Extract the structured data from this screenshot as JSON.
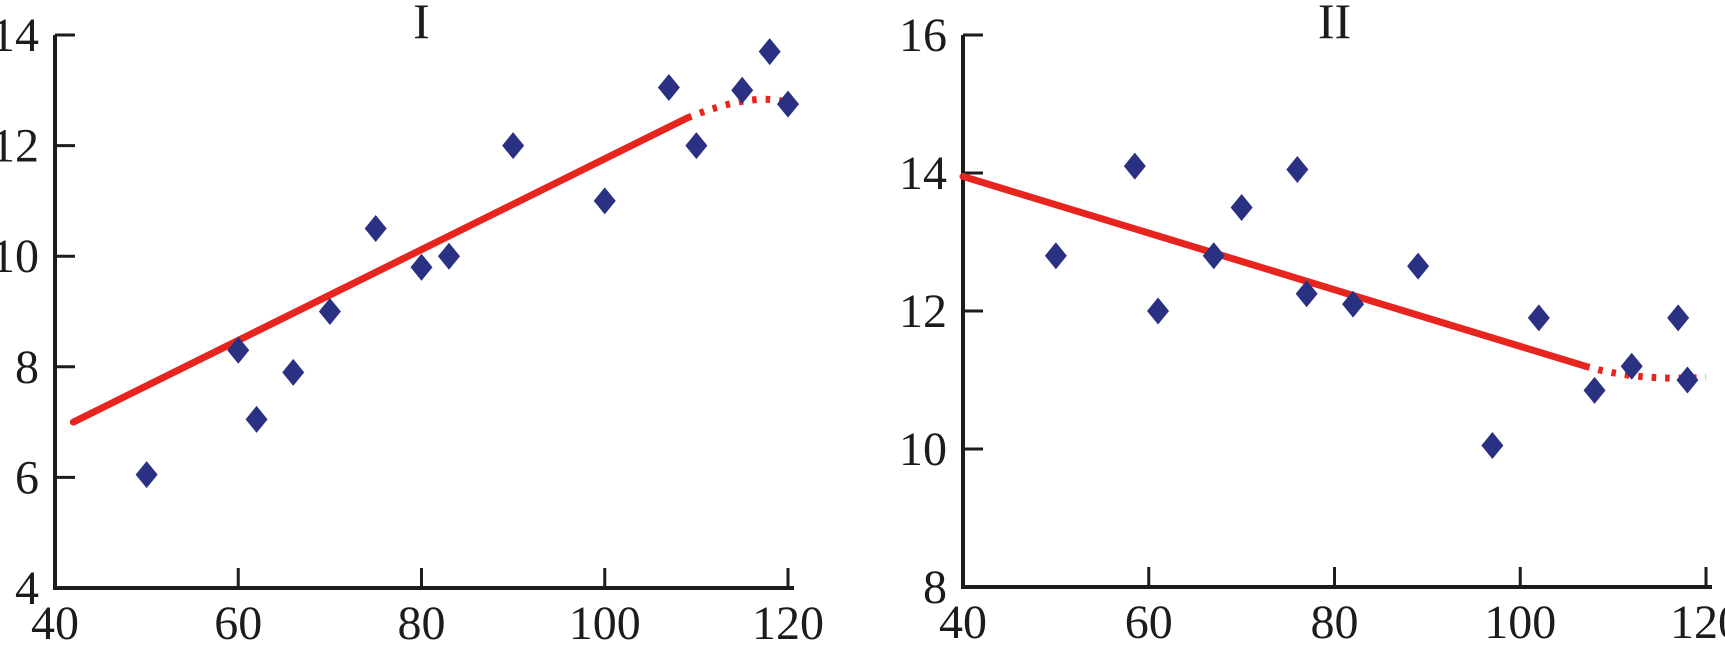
{
  "figure": {
    "background": "#ffffff",
    "axis_color": "#1c1c1c",
    "marker_color": "#2b3182",
    "trend_color": "#e8241f",
    "marker_shape": "diamond"
  },
  "chart_data": [
    {
      "type": "scatter",
      "title": "I",
      "xlim": [
        40,
        120
      ],
      "ylim": [
        4,
        14
      ],
      "x_ticks": [
        40,
        60,
        80,
        100,
        120
      ],
      "y_ticks": [
        4,
        6,
        8,
        10,
        12,
        14
      ],
      "xlabel": "",
      "ylabel": "",
      "grid": false,
      "legend": null,
      "points": [
        [
          50,
          6.05
        ],
        [
          60,
          8.3
        ],
        [
          62,
          7.05
        ],
        [
          66,
          7.9
        ],
        [
          70,
          9.0
        ],
        [
          75,
          10.5
        ],
        [
          80,
          9.8
        ],
        [
          83,
          10.0
        ],
        [
          90,
          12.0
        ],
        [
          100,
          11.0
        ],
        [
          107,
          13.05
        ],
        [
          110,
          12.0
        ],
        [
          115,
          13.0
        ],
        [
          118,
          13.7
        ],
        [
          120,
          12.75
        ]
      ],
      "trend_solid": [
        [
          42,
          7.0
        ],
        [
          109,
          12.5
        ]
      ],
      "trend_dotted": [
        [
          109,
          12.5
        ],
        [
          115,
          12.8
        ],
        [
          119.5,
          12.8
        ]
      ]
    },
    {
      "type": "scatter",
      "title": "II",
      "xlim": [
        40,
        120
      ],
      "ylim": [
        8,
        16
      ],
      "x_ticks": [
        40,
        60,
        80,
        100,
        120
      ],
      "y_ticks": [
        8,
        10,
        12,
        14,
        16
      ],
      "xlabel": "",
      "ylabel": "",
      "grid": false,
      "legend": null,
      "points": [
        [
          50,
          12.8
        ],
        [
          58.5,
          14.1
        ],
        [
          61,
          12.0
        ],
        [
          67,
          12.8
        ],
        [
          70,
          13.5
        ],
        [
          76,
          14.05
        ],
        [
          77,
          12.25
        ],
        [
          82,
          12.1
        ],
        [
          89,
          12.65
        ],
        [
          97,
          10.05
        ],
        [
          102,
          11.9
        ],
        [
          108,
          10.85
        ],
        [
          112,
          11.2
        ],
        [
          117,
          11.9
        ],
        [
          118,
          11.0
        ]
      ],
      "trend_solid": [
        [
          40,
          13.95
        ],
        [
          107,
          11.2
        ]
      ],
      "trend_dotted": [
        [
          107,
          11.2
        ],
        [
          113,
          11.05
        ],
        [
          120,
          11.04
        ]
      ]
    }
  ]
}
